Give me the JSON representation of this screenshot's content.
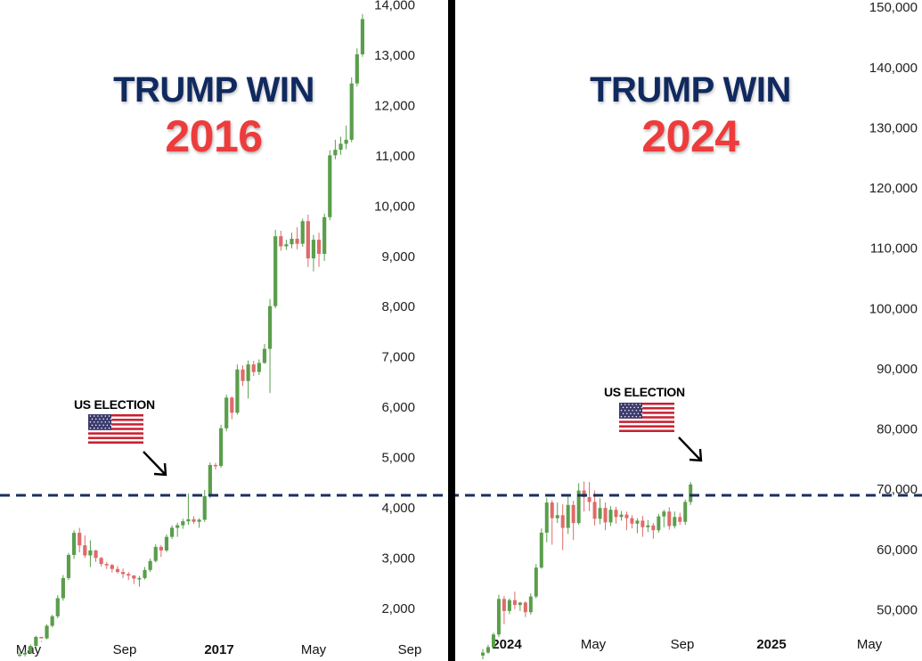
{
  "chart_data": [
    {
      "type": "candlestick",
      "title": "TRUMP WIN",
      "subtitle": "2016",
      "annotation": "US ELECTION",
      "y_ticks": [
        2000,
        3000,
        4000,
        5000,
        6000,
        7000,
        8000,
        9000,
        10000,
        11000,
        12000,
        13000,
        14000
      ],
      "y_tick_labels": [
        "2,000",
        "3,000",
        "4,000",
        "5,000",
        "6,000",
        "7,000",
        "8,000",
        "9,000",
        "10,000",
        "11,000",
        "12,000",
        "13,000",
        "14,000"
      ],
      "x_tick_labels": [
        "May",
        "Sep",
        "2017",
        "May",
        "Sep"
      ],
      "ylim": [
        950,
        14100
      ],
      "reference_level": 3700,
      "series": [
        {
          "values": [
            [
              1080,
              1120,
              1030,
              1080
            ],
            [
              1080,
              1160,
              1040,
              1110
            ],
            [
              1110,
              1280,
              1090,
              1250
            ],
            [
              1250,
              1450,
              1220,
              1430
            ],
            [
              1430,
              1350,
              1330,
              1400
            ],
            [
              1400,
              1680,
              1380,
              1650
            ],
            [
              1650,
              1870,
              1620,
              1840
            ],
            [
              1840,
              2260,
              1800,
              2200
            ],
            [
              2200,
              2660,
              2150,
              2600
            ],
            [
              2600,
              3100,
              2560,
              3060
            ],
            [
              3060,
              3550,
              2980,
              3500
            ],
            [
              3500,
              3600,
              3110,
              3250
            ],
            [
              3250,
              3450,
              3000,
              3050
            ],
            [
              3050,
              3350,
              2820,
              3150
            ],
            [
              3150,
              3160,
              2920,
              3000
            ],
            [
              3000,
              3020,
              2830,
              2880
            ],
            [
              2880,
              2920,
              2780,
              2860
            ],
            [
              2860,
              2880,
              2710,
              2780
            ],
            [
              2780,
              2840,
              2690,
              2720
            ],
            [
              2720,
              2790,
              2600,
              2680
            ],
            [
              2680,
              2720,
              2560,
              2650
            ],
            [
              2650,
              2660,
              2480,
              2590
            ],
            [
              2590,
              2640,
              2430,
              2600
            ],
            [
              2600,
              2820,
              2570,
              2760
            ],
            [
              2760,
              2990,
              2720,
              2940
            ],
            [
              2940,
              3270,
              2910,
              3220
            ],
            [
              3220,
              3260,
              3020,
              3150
            ],
            [
              3150,
              3470,
              3120,
              3420
            ],
            [
              3420,
              3650,
              3380,
              3600
            ],
            [
              3600,
              3700,
              3420,
              3650
            ],
            [
              3650,
              3780,
              3580,
              3730
            ],
            [
              3730,
              4280,
              3660,
              3770
            ],
            [
              3770,
              3830,
              3680,
              3720
            ],
            [
              3720,
              3790,
              3600,
              3760
            ],
            [
              3760,
              4350,
              3720,
              4230
            ],
            [
              4230,
              4900,
              4190,
              4850
            ],
            [
              4850,
              4890,
              4760,
              4830
            ],
            [
              4830,
              5650,
              4790,
              5580
            ],
            [
              5580,
              6250,
              5520,
              6190
            ],
            [
              6190,
              6210,
              5760,
              5890
            ],
            [
              5890,
              6850,
              5850,
              6750
            ],
            [
              6750,
              6830,
              6420,
              6520
            ],
            [
              6520,
              6930,
              6170,
              6850
            ],
            [
              6850,
              6920,
              6620,
              6700
            ],
            [
              6700,
              6950,
              6640,
              6880
            ],
            [
              6880,
              7260,
              6860,
              7160
            ],
            [
              7160,
              8150,
              6280,
              8010
            ],
            [
              8010,
              9530,
              7970,
              9400
            ],
            [
              9400,
              9510,
              9110,
              9200
            ],
            [
              9200,
              9330,
              9130,
              9240
            ],
            [
              9240,
              9470,
              9160,
              9350
            ],
            [
              9350,
              9580,
              9140,
              9250
            ],
            [
              9250,
              9750,
              9190,
              9700
            ],
            [
              9700,
              9830,
              8790,
              8960
            ],
            [
              8960,
              9430,
              8700,
              9330
            ],
            [
              9330,
              9470,
              8790,
              9050
            ],
            [
              9050,
              9850,
              8910,
              9780
            ],
            [
              9780,
              11110,
              9720,
              11010
            ],
            [
              11010,
              11320,
              10930,
              11120
            ],
            [
              11120,
              11380,
              11020,
              11240
            ],
            [
              11240,
              11600,
              11130,
              11320
            ],
            [
              11320,
              12560,
              11270,
              12440
            ],
            [
              12440,
              13140,
              12380,
              13020
            ],
            [
              13020,
              13820,
              12970,
              13720
            ]
          ]
        }
      ]
    },
    {
      "type": "candlestick",
      "title": "TRUMP WIN",
      "subtitle": "2024",
      "annotation": "US ELECTION",
      "y_ticks": [
        50000,
        60000,
        70000,
        80000,
        90000,
        100000,
        110000,
        120000,
        130000,
        140000,
        150000
      ],
      "y_tick_labels": [
        "50,000",
        "60,000",
        "70,000",
        "80,000",
        "90,000",
        "100,000",
        "110,000",
        "120,000",
        "130,000",
        "140,000",
        "150,000"
      ],
      "x_tick_labels": [
        "2024",
        "May",
        "Sep",
        "2025",
        "May"
      ],
      "ylim": [
        41500,
        151200
      ],
      "reference_level": 64600,
      "series": [
        {
          "values": [
            [
              42400,
              43500,
              41800,
              42900
            ],
            [
              42900,
              44200,
              42700,
              43800
            ],
            [
              43800,
              46200,
              43500,
              45900
            ],
            [
              45900,
              52500,
              45500,
              51800
            ],
            [
              51800,
              52300,
              47600,
              49800
            ],
            [
              49800,
              51900,
              49300,
              51600
            ],
            [
              51600,
              53000,
              50100,
              50800
            ],
            [
              50800,
              51300,
              49800,
              51200
            ],
            [
              51200,
              51400,
              48800,
              49600
            ],
            [
              49600,
              52700,
              49200,
              52200
            ],
            [
              52200,
              57600,
              51900,
              57000
            ],
            [
              57000,
              63500,
              56800,
              62800
            ],
            [
              62800,
              68600,
              61200,
              67800
            ],
            [
              67800,
              68200,
              60800,
              65200
            ],
            [
              65200,
              67800,
              64400,
              65700
            ],
            [
              65700,
              67500,
              59900,
              63600
            ],
            [
              63600,
              68800,
              62600,
              67400
            ],
            [
              67400,
              68100,
              61600,
              64400
            ],
            [
              64400,
              71000,
              64100,
              69800
            ],
            [
              69800,
              71300,
              66300,
              68700
            ],
            [
              68700,
              71200,
              66400,
              67900
            ],
            [
              67900,
              69800,
              64000,
              65100
            ],
            [
              65100,
              68500,
              64200,
              66900
            ],
            [
              66900,
              67800,
              63200,
              64500
            ],
            [
              64500,
              67200,
              63900,
              66600
            ],
            [
              66600,
              67100,
              64300,
              65400
            ],
            [
              65400,
              66400,
              64800,
              65800
            ],
            [
              65800,
              66300,
              63200,
              65200
            ],
            [
              65200,
              65700,
              63500,
              64300
            ],
            [
              64300,
              65200,
              62700,
              64800
            ],
            [
              64800,
              65600,
              62100,
              63700
            ],
            [
              63700,
              64900,
              62900,
              64000
            ],
            [
              64000,
              64400,
              61800,
              63200
            ],
            [
              63200,
              65900,
              62800,
              65500
            ],
            [
              65500,
              66600,
              63700,
              66300
            ],
            [
              66300,
              67000,
              63300,
              63900
            ],
            [
              63900,
              66300,
              63500,
              65400
            ],
            [
              65400,
              66100,
              64100,
              64600
            ],
            [
              64600,
              68300,
              64100,
              67900
            ],
            [
              67900,
              71200,
              67400,
              70800
            ]
          ]
        }
      ]
    }
  ]
}
